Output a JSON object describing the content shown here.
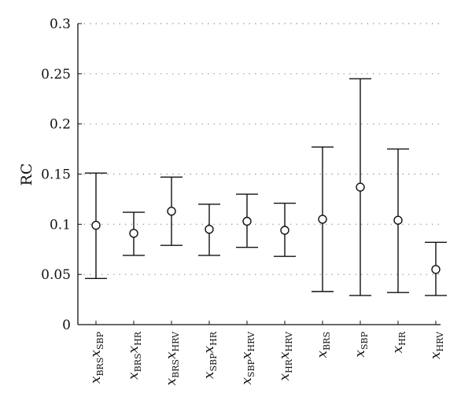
{
  "chart_data": {
    "type": "errorbar",
    "ylabel": "RC",
    "ylim": [
      0,
      0.3
    ],
    "yticks": [
      0,
      0.05,
      0.1,
      0.15,
      0.2,
      0.25,
      0.3
    ],
    "ytick_labels": [
      "0",
      "0.05",
      "0.1",
      "0.15",
      "0.2",
      "0.25",
      "0.3"
    ],
    "grid": "horizontal-dotted",
    "categories": [
      {
        "parts": [
          [
            "x",
            "BRS"
          ],
          [
            "x",
            "SBP"
          ]
        ]
      },
      {
        "parts": [
          [
            "x",
            "BRS"
          ],
          [
            "x",
            "HR"
          ]
        ]
      },
      {
        "parts": [
          [
            "x",
            "BRS"
          ],
          [
            "x",
            "HRV"
          ]
        ]
      },
      {
        "parts": [
          [
            "x",
            "SBP"
          ],
          [
            "x",
            "HR"
          ]
        ]
      },
      {
        "parts": [
          [
            "x",
            "SBP"
          ],
          [
            "x",
            "HRV"
          ]
        ]
      },
      {
        "parts": [
          [
            "x",
            "HR"
          ],
          [
            "x",
            "HRV"
          ]
        ]
      },
      {
        "parts": [
          [
            "x",
            "BRS"
          ]
        ]
      },
      {
        "parts": [
          [
            "x",
            "SBP"
          ]
        ]
      },
      {
        "parts": [
          [
            "x",
            "HR"
          ]
        ]
      },
      {
        "parts": [
          [
            "x",
            "HRV"
          ]
        ]
      }
    ],
    "series": [
      {
        "mean": [
          0.099,
          0.091,
          0.113,
          0.095,
          0.103,
          0.094,
          0.105,
          0.137,
          0.104,
          0.055
        ],
        "lower": [
          0.046,
          0.069,
          0.079,
          0.069,
          0.077,
          0.068,
          0.033,
          0.029,
          0.032,
          0.029
        ],
        "upper": [
          0.151,
          0.112,
          0.147,
          0.12,
          0.13,
          0.121,
          0.177,
          0.245,
          0.175,
          0.082
        ]
      }
    ],
    "marker": "open-circle",
    "colors": {
      "line": "#111111",
      "grid": "#9a9a9a"
    }
  }
}
